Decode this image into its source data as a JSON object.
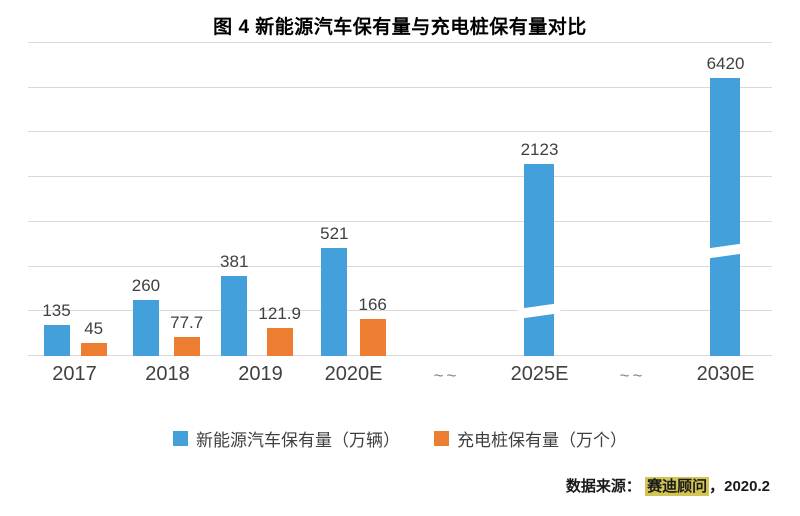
{
  "title": "图 4 新能源汽车保有量与充电桩保有量对比",
  "chart_data": {
    "type": "bar",
    "title": "图 4 新能源汽车保有量与充电桩保有量对比",
    "categories": [
      "2017",
      "2018",
      "2019",
      "2020E",
      "~~",
      "2025E",
      "~~",
      "2030E"
    ],
    "series": [
      {
        "name": "新能源汽车保有量（万辆）",
        "color": "#44A0DB",
        "values": [
          135,
          260,
          381,
          521,
          null,
          2123,
          null,
          6420
        ]
      },
      {
        "name": "充电桩保有量（万个）",
        "color": "#ED7D31",
        "values": [
          45,
          77.7,
          121.9,
          166,
          null,
          null,
          null,
          null
        ]
      }
    ],
    "data_labels": true,
    "axis_break": true,
    "broken_bar_categories": [
      "2025E",
      "2030E"
    ],
    "grid": true,
    "legend_position": "bottom"
  },
  "source": {
    "prefix": "数据来源： ",
    "highlight": "赛迪顾问",
    "suffix": "，2020.2"
  },
  "colors": {
    "bar_blue": "#44A0DB",
    "bar_orange": "#ED7D31",
    "gridline": "#D9D9D9",
    "source_highlight": "#D2C553",
    "text": "#404040"
  }
}
